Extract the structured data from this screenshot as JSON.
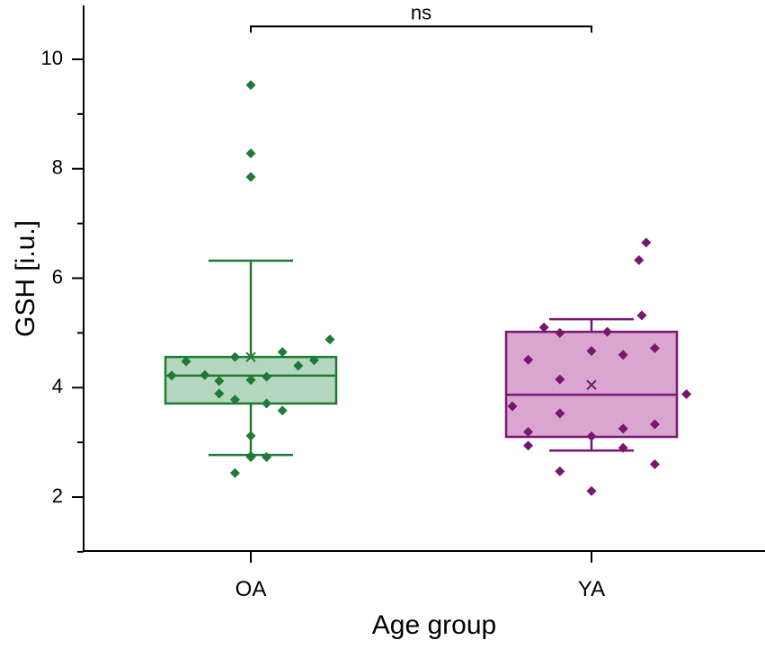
{
  "chart_data": {
    "type": "box",
    "xlabel": "Age group",
    "ylabel": "GSH [i.u.]",
    "ylim": [
      1,
      11
    ],
    "yticks": [
      2,
      4,
      6,
      8,
      10
    ],
    "tick_labels": [
      "2",
      "4",
      "6",
      "8",
      "10"
    ],
    "categories": [
      "OA",
      "YA"
    ],
    "significance": {
      "label": "ns",
      "between": [
        "OA",
        "YA"
      ],
      "y": 10.6
    },
    "groups": [
      {
        "name": "OA",
        "color": "#1e7a34",
        "fill": "#b5d6bf",
        "whisker_low": 2.77,
        "q1": 3.71,
        "median": 4.22,
        "q3": 4.56,
        "whisker_high": 6.32,
        "mean": 4.56,
        "points": [
          {
            "dx": -0.55,
            "y": 4.22
          },
          {
            "dx": -0.45,
            "y": 4.48
          },
          {
            "dx": -0.32,
            "y": 4.23
          },
          {
            "dx": -0.22,
            "y": 4.12
          },
          {
            "dx": -0.22,
            "y": 3.89
          },
          {
            "dx": -0.11,
            "y": 4.56
          },
          {
            "dx": -0.11,
            "y": 3.78
          },
          {
            "dx": 0.0,
            "y": 9.53
          },
          {
            "dx": 0.0,
            "y": 8.28
          },
          {
            "dx": 0.0,
            "y": 7.85
          },
          {
            "dx": 0.0,
            "y": 4.14
          },
          {
            "dx": 0.0,
            "y": 3.12
          },
          {
            "dx": 0.0,
            "y": 2.73
          },
          {
            "dx": 0.0,
            "y": 2.75
          },
          {
            "dx": 0.11,
            "y": 4.2
          },
          {
            "dx": 0.11,
            "y": 3.71
          },
          {
            "dx": 0.11,
            "y": 2.73
          },
          {
            "dx": -0.11,
            "y": 2.44
          },
          {
            "dx": 0.22,
            "y": 4.65
          },
          {
            "dx": 0.22,
            "y": 3.58
          },
          {
            "dx": 0.33,
            "y": 4.4
          },
          {
            "dx": 0.44,
            "y": 4.5
          },
          {
            "dx": 0.55,
            "y": 4.88
          }
        ]
      },
      {
        "name": "YA",
        "color": "#7a1570",
        "fill": "#d9a6d0",
        "whisker_low": 2.85,
        "q1": 3.1,
        "median": 3.87,
        "q3": 5.02,
        "whisker_high": 5.25,
        "mean": 4.05,
        "points": [
          {
            "dx": -0.55,
            "y": 3.66
          },
          {
            "dx": -0.44,
            "y": 4.51
          },
          {
            "dx": -0.44,
            "y": 3.19
          },
          {
            "dx": -0.44,
            "y": 2.94
          },
          {
            "dx": -0.33,
            "y": 5.1
          },
          {
            "dx": -0.22,
            "y": 5.0
          },
          {
            "dx": -0.22,
            "y": 4.15
          },
          {
            "dx": -0.22,
            "y": 3.53
          },
          {
            "dx": -0.22,
            "y": 2.47
          },
          {
            "dx": 0.0,
            "y": 4.67
          },
          {
            "dx": 0.0,
            "y": 3.11
          },
          {
            "dx": 0.0,
            "y": 2.11
          },
          {
            "dx": 0.11,
            "y": 5.02
          },
          {
            "dx": 0.22,
            "y": 4.6
          },
          {
            "dx": 0.22,
            "y": 3.25
          },
          {
            "dx": 0.22,
            "y": 2.9
          },
          {
            "dx": 0.33,
            "y": 6.33
          },
          {
            "dx": 0.38,
            "y": 6.65
          },
          {
            "dx": 0.35,
            "y": 5.32
          },
          {
            "dx": 0.44,
            "y": 4.72
          },
          {
            "dx": 0.44,
            "y": 3.33
          },
          {
            "dx": 0.44,
            "y": 2.6
          },
          {
            "dx": 0.66,
            "y": 3.88
          }
        ]
      }
    ]
  }
}
